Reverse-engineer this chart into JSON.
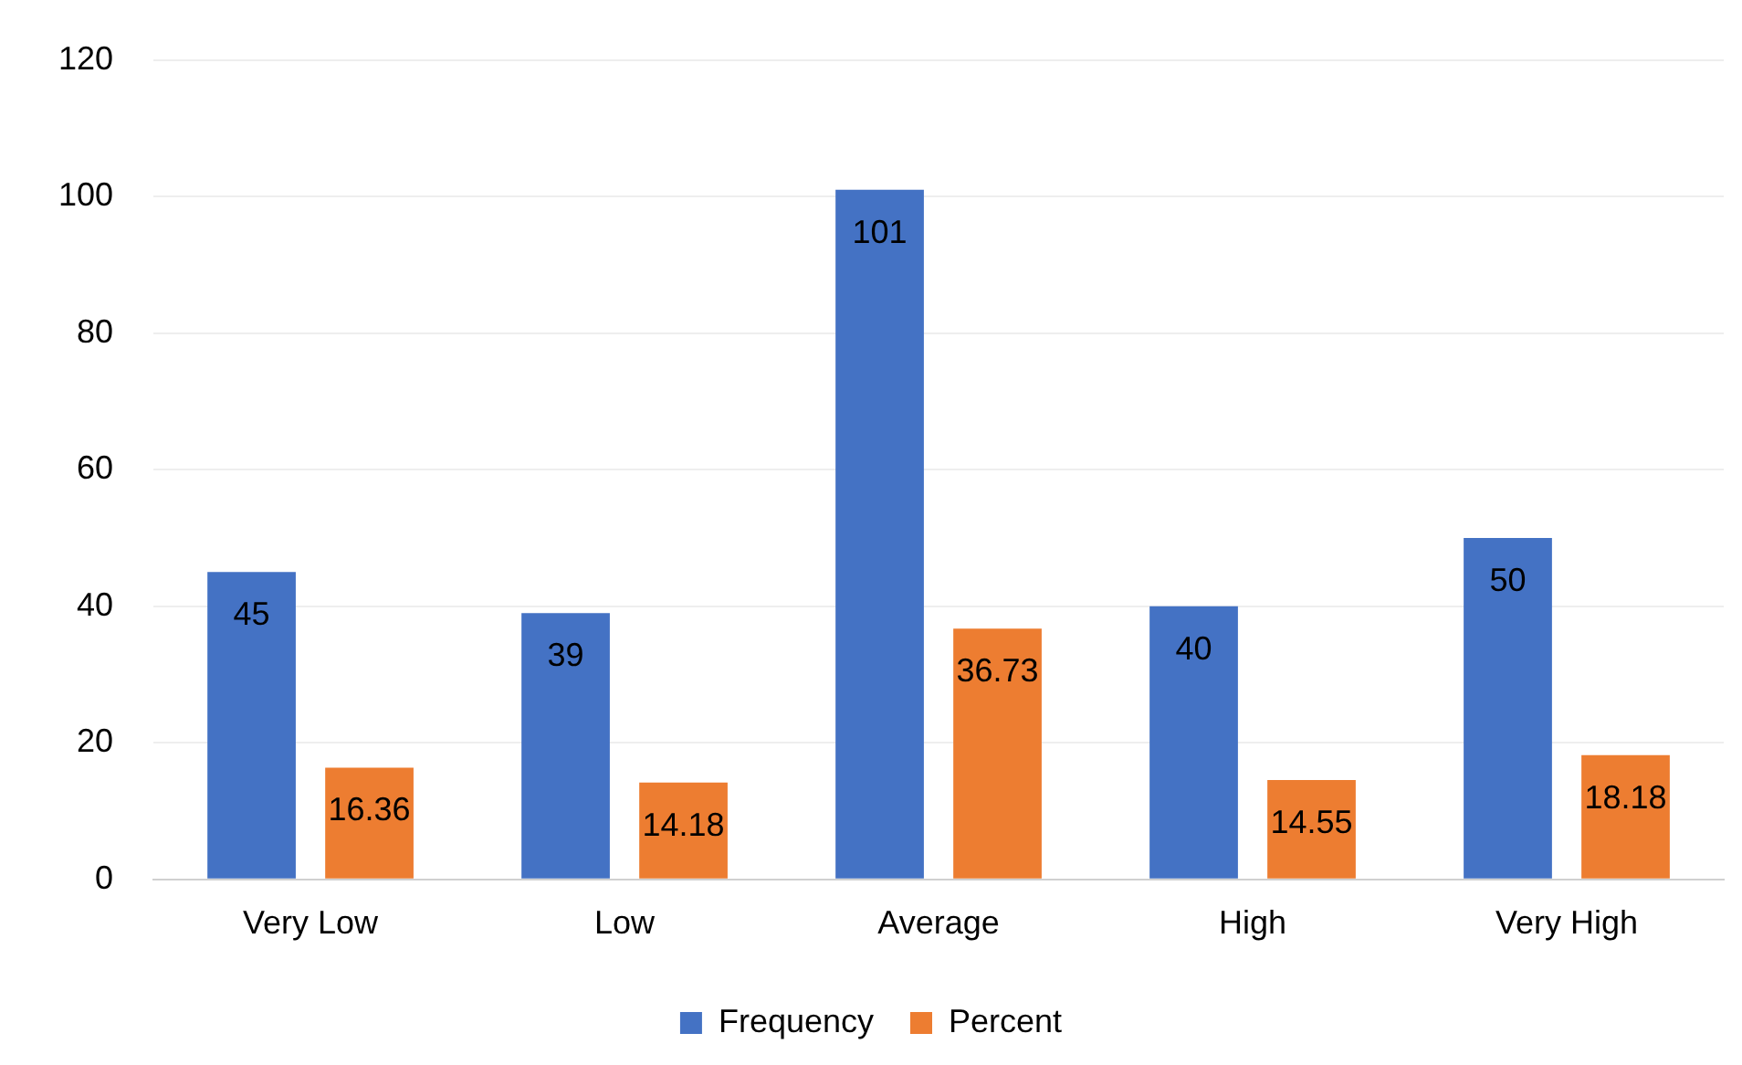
{
  "chart_data": {
    "type": "bar",
    "categories": [
      "Very Low",
      "Low",
      "Average",
      "High",
      "Very High"
    ],
    "series": [
      {
        "name": "Frequency",
        "color": "#4472c4",
        "values": [
          45,
          39,
          101,
          40,
          50
        ]
      },
      {
        "name": "Percent",
        "color": "#ed7d31",
        "values": [
          16.36,
          14.18,
          36.73,
          14.55,
          18.18
        ]
      }
    ],
    "ylim": [
      0,
      120
    ],
    "yticks": [
      0,
      20,
      40,
      60,
      80,
      100,
      120
    ],
    "grid": "y",
    "legend": "bottom",
    "data_labels": true
  }
}
